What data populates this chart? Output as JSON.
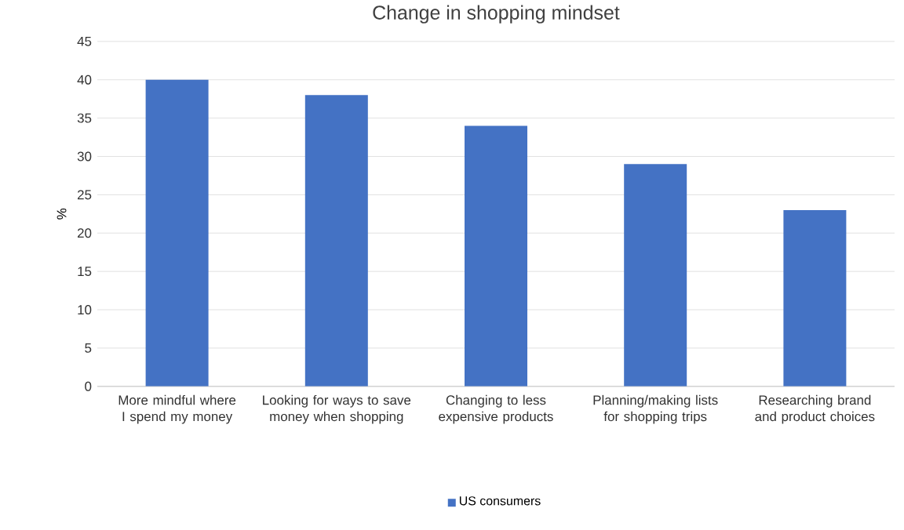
{
  "chart_data": {
    "type": "bar",
    "title": "Change in shopping mindset",
    "ylabel": "%",
    "categories": [
      "More mindful where I spend my money",
      "Looking for ways to save money when shopping",
      "Changing to less expensive products",
      "Planning/making lists for shopping trips",
      "Researching brand and product choices"
    ],
    "series": [
      {
        "name": "US consumers",
        "color": "#4472c4",
        "values": [
          40,
          38,
          34,
          29,
          23
        ]
      }
    ],
    "ylim": [
      0,
      45
    ],
    "yticks": [
      0,
      5,
      10,
      15,
      20,
      25,
      30,
      35,
      40,
      45
    ],
    "grid": "y",
    "legend": "bottom"
  }
}
